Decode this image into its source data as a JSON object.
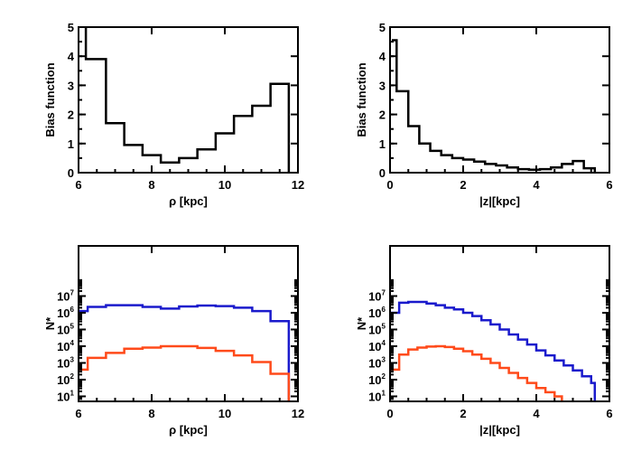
{
  "colors": {
    "axes": "#000000",
    "model": "#1a1acc",
    "observed": "#ff4a1a"
  },
  "chart_data": [
    {
      "type": "histogram",
      "id": "bias-rho",
      "xlabel": "ρ [kpc]",
      "ylabel": "Bias function",
      "xlim": [
        6,
        12
      ],
      "ylim": [
        0,
        5
      ],
      "yscale": "linear",
      "xticks": [
        "6",
        "8",
        "10",
        "12"
      ],
      "yticks": [
        "0",
        "1",
        "2",
        "3",
        "4",
        "5"
      ],
      "series": [
        {
          "color": "#000000",
          "bin_edges": [
            6.2,
            6.75,
            7.25,
            7.75,
            8.25,
            8.75,
            9.25,
            9.75,
            10.25,
            10.75,
            11.25,
            11.75
          ],
          "values": [
            3.9,
            1.7,
            0.95,
            0.6,
            0.35,
            0.5,
            0.8,
            1.35,
            1.95,
            2.3,
            3.05
          ],
          "left_edge_top": 5.0
        }
      ]
    },
    {
      "type": "histogram",
      "id": "bias-z",
      "xlabel": "|z|[kpc]",
      "ylabel": "Bias function",
      "xlim": [
        0,
        6
      ],
      "ylim": [
        0,
        5
      ],
      "yscale": "linear",
      "xticks": [
        "0",
        "2",
        "4",
        "6"
      ],
      "yticks": [
        "0",
        "1",
        "2",
        "3",
        "4",
        "5"
      ],
      "series": [
        {
          "color": "#000000",
          "bin_edges": [
            0.05,
            0.18,
            0.5,
            0.8,
            1.1,
            1.4,
            1.7,
            2.0,
            2.3,
            2.6,
            2.9,
            3.2,
            3.5,
            3.8,
            4.1,
            4.4,
            4.7,
            5.0,
            5.3,
            5.6
          ],
          "values": [
            4.55,
            2.8,
            1.6,
            1.0,
            0.75,
            0.6,
            0.5,
            0.45,
            0.38,
            0.3,
            0.25,
            0.18,
            0.12,
            0.1,
            0.12,
            0.18,
            0.3,
            0.4,
            0.15
          ]
        }
      ]
    },
    {
      "type": "histogram",
      "id": "counts-rho",
      "xlabel": "ρ [kpc]",
      "ylabel": "N*",
      "xlim": [
        6,
        12
      ],
      "ylim": [
        0.7,
        10
      ],
      "yscale": "log",
      "xticks": [
        "6",
        "8",
        "10",
        "12"
      ],
      "yticks_exp": [
        1,
        2,
        3,
        4,
        5,
        6,
        7
      ],
      "series": [
        {
          "color": "#1a1acc",
          "bin_edges": [
            6.0,
            6.25,
            6.75,
            7.25,
            7.75,
            8.25,
            8.75,
            9.25,
            9.75,
            10.25,
            10.75,
            11.25,
            11.75
          ],
          "values": [
            6.1,
            6.35,
            6.45,
            6.45,
            6.35,
            6.25,
            6.38,
            6.43,
            6.4,
            6.3,
            6.1,
            5.5
          ],
          "right_edge_bottom": 0.7
        },
        {
          "color": "#ff4a1a",
          "bin_edges": [
            6.0,
            6.25,
            6.75,
            7.25,
            7.75,
            8.25,
            8.75,
            9.25,
            9.75,
            10.25,
            10.75,
            11.25,
            11.75
          ],
          "values": [
            2.6,
            3.3,
            3.6,
            3.85,
            3.92,
            4.0,
            4.0,
            3.9,
            3.72,
            3.45,
            3.05,
            2.35
          ],
          "right_edge_bottom": 0.7
        }
      ]
    },
    {
      "type": "histogram",
      "id": "counts-z",
      "xlabel": "|z|[kpc]",
      "ylabel": "N*",
      "xlim": [
        0,
        6
      ],
      "ylim": [
        0.7,
        10
      ],
      "yscale": "log",
      "xticks": [
        "0",
        "2",
        "4",
        "6"
      ],
      "yticks_exp": [
        1,
        2,
        3,
        4,
        5,
        6,
        7
      ],
      "series": [
        {
          "color": "#1a1acc",
          "bin_edges": [
            0.0,
            0.25,
            0.5,
            0.75,
            1.0,
            1.25,
            1.5,
            1.75,
            2.0,
            2.25,
            2.5,
            2.75,
            3.0,
            3.25,
            3.5,
            3.75,
            4.0,
            4.25,
            4.5,
            4.75,
            5.0,
            5.25,
            5.5,
            5.6
          ],
          "values": [
            6.0,
            6.6,
            6.65,
            6.65,
            6.55,
            6.45,
            6.3,
            6.2,
            6.0,
            5.8,
            5.55,
            5.3,
            5.0,
            4.7,
            4.4,
            4.1,
            3.75,
            3.45,
            3.15,
            2.85,
            2.55,
            2.2,
            1.8
          ],
          "right_edge_bottom": 0.7
        },
        {
          "color": "#ff4a1a",
          "bin_edges": [
            0.0,
            0.25,
            0.5,
            0.75,
            1.0,
            1.25,
            1.5,
            1.75,
            2.0,
            2.25,
            2.5,
            2.75,
            3.0,
            3.25,
            3.5,
            3.75,
            4.0,
            4.25,
            4.5,
            4.7
          ],
          "values": [
            2.6,
            3.5,
            3.8,
            3.92,
            3.98,
            4.0,
            3.95,
            3.85,
            3.7,
            3.5,
            3.25,
            3.0,
            2.7,
            2.4,
            2.1,
            1.8,
            1.5,
            1.25,
            1.0
          ],
          "right_edge_bottom": 0.7
        }
      ]
    }
  ]
}
